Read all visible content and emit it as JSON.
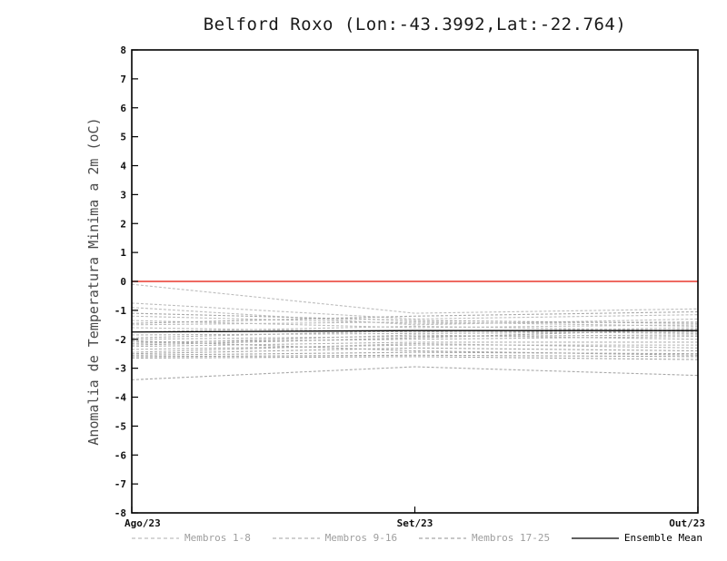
{
  "chart_data": {
    "type": "line",
    "title": "Belford Roxo (Lon:-43.3992,Lat:-22.764)",
    "xlabel": "",
    "ylabel": "Anomalia de Temperatura Minima a 2m (oC)",
    "ylim": [
      -8,
      8
    ],
    "y_ticks": [
      8,
      7,
      6,
      5,
      4,
      3,
      2,
      1,
      0,
      -1,
      -2,
      -3,
      -4,
      -5,
      -6,
      -7,
      -8
    ],
    "x_ticks": [
      "Ago/23",
      "Set/23",
      "Out/23"
    ],
    "grid": false,
    "legend_position": "bottom",
    "zero_line": {
      "y": 0,
      "color": "#e8392f"
    },
    "frame_color": "#000000",
    "groups": [
      {
        "name": "Membros 1-8",
        "color": "#bdbdbd",
        "dash": "3 2",
        "members": [
          [
            -0.1,
            -1.1,
            -0.95
          ],
          [
            -0.75,
            -1.3,
            -1.15
          ],
          [
            -0.9,
            -1.5,
            -1.3
          ],
          [
            -1.2,
            -1.45,
            -1.4
          ],
          [
            -1.35,
            -1.6,
            -1.5
          ],
          [
            -1.5,
            -1.4,
            -1.55
          ],
          [
            -1.6,
            -1.75,
            -1.6
          ],
          [
            -1.75,
            -1.55,
            -1.7
          ]
        ]
      },
      {
        "name": "Membros 9-16",
        "color": "#b3b3b3",
        "dash": "3 2",
        "members": [
          [
            -1.85,
            -1.8,
            -1.75
          ],
          [
            -1.95,
            -1.7,
            -1.8
          ],
          [
            -2.0,
            -1.9,
            -1.85
          ],
          [
            -2.1,
            -2.0,
            -1.9
          ],
          [
            -2.15,
            -1.85,
            -2.0
          ],
          [
            -2.25,
            -2.1,
            -2.1
          ],
          [
            -2.35,
            -2.2,
            -2.2
          ],
          [
            -2.45,
            -2.15,
            -2.3
          ]
        ]
      },
      {
        "name": "Membros 17-25",
        "color": "#a8a8a8",
        "dash": "3 2",
        "members": [
          [
            -2.5,
            -2.3,
            -2.4
          ],
          [
            -2.55,
            -2.45,
            -2.5
          ],
          [
            -2.6,
            -2.55,
            -2.6
          ],
          [
            -2.65,
            -2.6,
            -2.7
          ],
          [
            -2.2,
            -1.95,
            -1.65
          ],
          [
            -1.45,
            -1.2,
            -1.05
          ],
          [
            -1.1,
            -1.35,
            -1.45
          ],
          [
            -2.05,
            -2.4,
            -2.55
          ],
          [
            -3.4,
            -2.95,
            -3.25
          ]
        ]
      }
    ],
    "mean": {
      "name": "Ensemble Mean",
      "color": "#000000",
      "values": [
        -1.75,
        -1.7,
        -1.7
      ]
    },
    "legend": [
      {
        "label": "Membros 1-8",
        "color": "#bdbdbd",
        "dash": "4 3",
        "text_color": "#9e9e9e"
      },
      {
        "label": "Membros 9-16",
        "color": "#b3b3b3",
        "dash": "4 3",
        "text_color": "#9e9e9e"
      },
      {
        "label": "Membros 17-25",
        "color": "#a8a8a8",
        "dash": "4 3",
        "text_color": "#9e9e9e"
      },
      {
        "label": "Ensemble Mean",
        "color": "#000000",
        "dash": null,
        "text_color": "#000000"
      }
    ]
  }
}
